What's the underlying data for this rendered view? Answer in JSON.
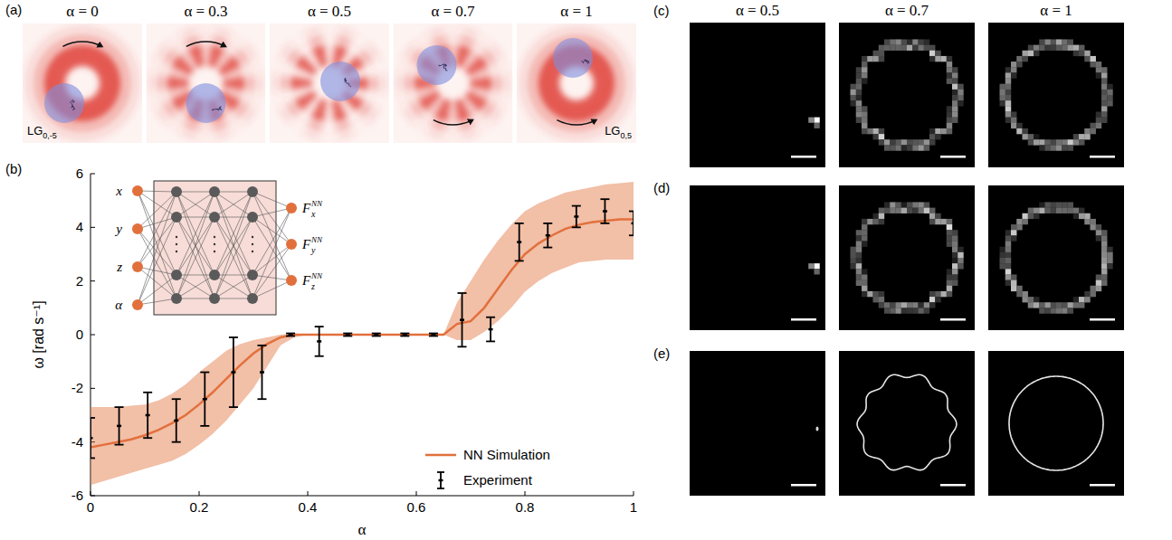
{
  "panel_labels": [
    "(a)",
    "(b)",
    "(c)",
    "(d)",
    "(e)"
  ],
  "panel_a": {
    "columns": [
      {
        "value": 0,
        "label": "α = 0"
      },
      {
        "value": 0.3,
        "label": "α = 0.3"
      },
      {
        "value": 0.5,
        "label": "α = 0.5"
      },
      {
        "value": 0.7,
        "label": "α = 0.7"
      },
      {
        "value": 1,
        "label": "α = 1"
      }
    ],
    "mode_labels": [
      {
        "text": "LG",
        "subscript": "0,-5"
      },
      {
        "text": "LG",
        "subscript": "0,5"
      }
    ]
  },
  "inset_network": {
    "inputs": [
      "x",
      "y",
      "z",
      "α"
    ],
    "outputs": [
      {
        "text": "F",
        "subscript": "x",
        "superscript": "NN"
      },
      {
        "text": "F",
        "subscript": "y",
        "superscript": "NN"
      },
      {
        "text": "F",
        "subscript": "z",
        "superscript": "NN"
      }
    ]
  },
  "chart_data": {
    "type": "line",
    "x_label": "α",
    "y_label": "ω [rad s⁻¹]",
    "xlim": [
      0,
      1
    ],
    "ylim": [
      -6,
      6
    ],
    "xticks": [
      0,
      0.2,
      0.4,
      0.6,
      0.8,
      1
    ],
    "yticks": [
      -6,
      -4,
      -2,
      0,
      2,
      4,
      6
    ],
    "grid": false,
    "legend": "lower right",
    "series": [
      {
        "name": "NN Simulation",
        "type": "line",
        "color": "#e2703c",
        "x": [
          0,
          0.025,
          0.05,
          0.075,
          0.1,
          0.125,
          0.15,
          0.175,
          0.2,
          0.225,
          0.25,
          0.275,
          0.3,
          0.325,
          0.35,
          0.375,
          0.4,
          0.425,
          0.45,
          0.475,
          0.5,
          0.525,
          0.55,
          0.575,
          0.6,
          0.625,
          0.65,
          0.675,
          0.7,
          0.725,
          0.75,
          0.775,
          0.8,
          0.825,
          0.85,
          0.875,
          0.9,
          0.925,
          0.95,
          0.975,
          1
        ],
        "values": [
          -4.2,
          -4.1,
          -4.0,
          -3.9,
          -3.75,
          -3.55,
          -3.3,
          -3.0,
          -2.6,
          -2.15,
          -1.65,
          -1.15,
          -0.7,
          -0.35,
          -0.1,
          0,
          0,
          0,
          0,
          0,
          0,
          0,
          0,
          0,
          0,
          0,
          0,
          0.4,
          0.5,
          1.0,
          1.7,
          2.4,
          3.0,
          3.4,
          3.7,
          3.95,
          4.1,
          4.2,
          4.25,
          4.3,
          4.3
        ],
        "lower": [
          -5.6,
          -5.45,
          -5.3,
          -5.15,
          -5.0,
          -4.85,
          -4.7,
          -4.45,
          -4.1,
          -3.7,
          -3.2,
          -2.6,
          -2.0,
          -1.2,
          -0.4,
          -0.1,
          0,
          0,
          0,
          0,
          0,
          0,
          0,
          0,
          0,
          0,
          0,
          -0.2,
          -0.2,
          0.1,
          0.5,
          1.0,
          1.6,
          2.0,
          2.3,
          2.5,
          2.7,
          2.75,
          2.8,
          2.8,
          2.8
        ],
        "upper": [
          -2.7,
          -2.7,
          -2.7,
          -2.65,
          -2.6,
          -2.45,
          -2.2,
          -1.85,
          -1.4,
          -1.0,
          -0.6,
          -0.35,
          -0.2,
          -0.1,
          0,
          0.05,
          0,
          0,
          0,
          0,
          0,
          0,
          0,
          0,
          0,
          0,
          0,
          1.2,
          2.0,
          2.8,
          3.5,
          4.1,
          4.6,
          4.9,
          5.1,
          5.3,
          5.4,
          5.5,
          5.6,
          5.65,
          5.7
        ]
      },
      {
        "name": "Experiment",
        "type": "errorbar",
        "color": "#000000",
        "x": [
          0,
          0.0526,
          0.1053,
          0.1579,
          0.2105,
          0.2632,
          0.3158,
          0.3684,
          0.4211,
          0.4737,
          0.5263,
          0.5789,
          0.6316,
          0.6842,
          0.7368,
          0.7895,
          0.8421,
          0.8947,
          0.9474,
          1
        ],
        "values": [
          -3.85,
          -3.4,
          -3.0,
          -3.2,
          -2.4,
          -1.4,
          -1.4,
          0,
          -0.25,
          0,
          0,
          0,
          0,
          0.55,
          0.2,
          3.45,
          3.7,
          4.4,
          4.6,
          4.15
        ],
        "errors": [
          0.75,
          0.7,
          0.85,
          0.8,
          1.0,
          1.3,
          1.0,
          0.05,
          0.55,
          0.05,
          0.05,
          0.05,
          0.05,
          1.0,
          0.45,
          0.7,
          0.45,
          0.4,
          0.45,
          0.45
        ]
      }
    ]
  },
  "panel_cde": {
    "columns": [
      {
        "value": 0.5,
        "label": "α = 0.5"
      },
      {
        "value": 0.7,
        "label": "α = 0.7"
      },
      {
        "value": 1,
        "label": "α = 1"
      }
    ]
  }
}
